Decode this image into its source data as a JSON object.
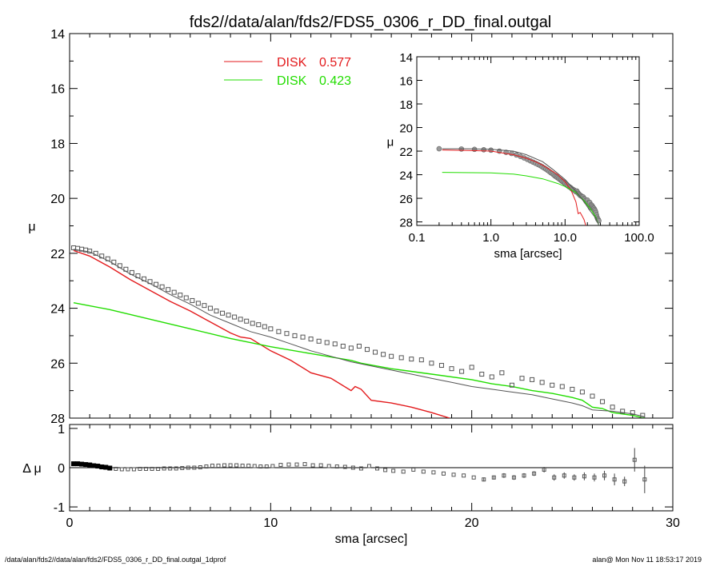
{
  "footer": {
    "left": "/data/alan/fds2//data/alan/fds2/FDS5_0306_r_DD_final.outgal_1dprof",
    "right": "alan@  Mon Nov 11 18:53:17 2019"
  },
  "colors": {
    "disk1": "#e31a1c",
    "disk2": "#22dd00",
    "data": "#555555",
    "model": "#555555"
  },
  "chart_data": [
    {
      "id": "main",
      "type": "line",
      "title": "fds2//data/alan/fds2/FDS5_0306_r_DD_final.outgal",
      "xlabel": "",
      "ylabel": "μ",
      "xlim": [
        0,
        30
      ],
      "ylim": [
        28,
        14
      ],
      "xticks": [
        0,
        10,
        20,
        30
      ],
      "xtick_labels": [
        "",
        "",
        "",
        ""
      ],
      "yticks": [
        14,
        16,
        18,
        20,
        22,
        24,
        26,
        28
      ],
      "ytick_labels": [
        "14",
        "16",
        "18",
        "20",
        "22",
        "24",
        "26",
        "28"
      ],
      "legend": [
        {
          "label": "DISK",
          "value": "0.577",
          "color": "#e31a1c"
        },
        {
          "label": "DISK",
          "value": "0.423",
          "color": "#22dd00"
        }
      ],
      "series": [
        {
          "name": "DISK 0.577",
          "color": "#e31a1c",
          "x": [
            0.2,
            1,
            2,
            3,
            4,
            5,
            6,
            7,
            8,
            8.5,
            9,
            10,
            11,
            12,
            13,
            14,
            14.2,
            14.5,
            15,
            16,
            17,
            18,
            18.9
          ],
          "y": [
            21.9,
            22.1,
            22.5,
            22.95,
            23.35,
            23.75,
            24.1,
            24.5,
            24.9,
            25.05,
            25.1,
            25.55,
            25.9,
            26.35,
            26.55,
            27.0,
            26.85,
            26.95,
            27.35,
            27.45,
            27.6,
            27.8,
            28.0
          ]
        },
        {
          "name": "DISK 0.423",
          "color": "#22dd00",
          "x": [
            0.2,
            2,
            4,
            6,
            8,
            10,
            12,
            14,
            14.5,
            16,
            18,
            20,
            21,
            22,
            23,
            24,
            25,
            25.5,
            26,
            26.5,
            27,
            28,
            28.6
          ],
          "y": [
            23.8,
            24.05,
            24.4,
            24.75,
            25.1,
            25.4,
            25.65,
            25.9,
            26.0,
            26.2,
            26.4,
            26.6,
            26.75,
            26.85,
            27.0,
            27.1,
            27.25,
            27.35,
            27.6,
            27.65,
            27.8,
            27.9,
            28.0
          ]
        },
        {
          "name": "",
          "color": "#555555",
          "x": [
            0.2,
            1,
            2,
            3,
            4,
            5,
            6,
            7,
            8,
            9,
            10,
            11,
            12,
            13,
            14,
            15,
            16,
            17,
            18,
            19,
            20,
            21,
            22,
            23,
            24,
            25,
            25.5,
            26,
            27,
            28,
            28.6
          ],
          "y": [
            21.85,
            21.95,
            22.3,
            22.75,
            23.1,
            23.5,
            23.85,
            24.25,
            24.55,
            24.85,
            25.05,
            25.3,
            25.55,
            25.75,
            25.95,
            26.1,
            26.25,
            26.4,
            26.55,
            26.7,
            26.85,
            26.95,
            27.05,
            27.15,
            27.3,
            27.45,
            27.55,
            27.7,
            27.75,
            27.85,
            27.95
          ]
        }
      ],
      "points": {
        "x": [
          0.2,
          0.4,
          0.6,
          0.8,
          1.0,
          1.3,
          1.6,
          1.9,
          2.2,
          2.5,
          2.8,
          3.1,
          3.4,
          3.7,
          4.0,
          4.3,
          4.6,
          4.9,
          5.2,
          5.5,
          5.8,
          6.1,
          6.4,
          6.7,
          7.0,
          7.3,
          7.6,
          7.9,
          8.2,
          8.5,
          8.8,
          9.1,
          9.4,
          9.7,
          10.0,
          10.4,
          10.8,
          11.2,
          11.6,
          12.0,
          12.4,
          12.8,
          13.2,
          13.6,
          14.0,
          14.4,
          14.8,
          15.2,
          15.6,
          16.0,
          16.5,
          17.0,
          17.5,
          18.0,
          18.5,
          19.0,
          19.5,
          20.0,
          20.5,
          21.0,
          21.5,
          22.0,
          22.5,
          23.0,
          23.5,
          24.0,
          24.5,
          25.0,
          25.5,
          26.0,
          26.5,
          27.0,
          27.5,
          28.0,
          28.5
        ],
        "y": [
          21.8,
          21.82,
          21.85,
          21.88,
          21.92,
          22.0,
          22.1,
          22.2,
          22.32,
          22.45,
          22.58,
          22.7,
          22.82,
          22.93,
          23.03,
          23.13,
          23.22,
          23.32,
          23.42,
          23.52,
          23.62,
          23.72,
          23.82,
          23.9,
          24.0,
          24.1,
          24.18,
          24.25,
          24.32,
          24.4,
          24.47,
          24.55,
          24.6,
          24.67,
          24.75,
          24.85,
          24.92,
          25.0,
          25.05,
          25.12,
          25.2,
          25.25,
          25.3,
          25.38,
          25.45,
          25.38,
          25.5,
          25.6,
          25.68,
          25.75,
          25.8,
          25.85,
          25.88,
          26.0,
          26.08,
          26.2,
          26.3,
          26.15,
          26.4,
          26.5,
          26.35,
          26.8,
          26.55,
          26.6,
          26.7,
          26.8,
          26.85,
          26.95,
          27.05,
          27.2,
          27.4,
          27.6,
          27.75,
          27.8,
          27.9
        ]
      }
    },
    {
      "id": "residual",
      "type": "scatter",
      "xlabel": "sma [arcsec]",
      "ylabel": "Δ μ",
      "xlim": [
        0,
        30
      ],
      "ylim": [
        -1.1,
        1.1
      ],
      "xticks": [
        0,
        10,
        20,
        30
      ],
      "xtick_labels": [
        "0",
        "10",
        "20",
        "30"
      ],
      "yticks": [
        -1,
        0,
        1
      ],
      "ytick_labels": [
        "-1",
        "0",
        "1"
      ],
      "x": [
        0.2,
        0.4,
        0.6,
        0.8,
        1.0,
        1.2,
        1.4,
        1.6,
        1.8,
        2.0,
        2.3,
        2.6,
        2.9,
        3.2,
        3.5,
        3.8,
        4.1,
        4.4,
        4.7,
        5.0,
        5.3,
        5.6,
        5.9,
        6.2,
        6.5,
        6.8,
        7.1,
        7.4,
        7.7,
        8.0,
        8.3,
        8.6,
        8.9,
        9.2,
        9.5,
        9.8,
        10.1,
        10.5,
        10.9,
        11.3,
        11.7,
        12.1,
        12.5,
        12.9,
        13.3,
        13.7,
        14.1,
        14.5,
        14.9,
        15.3,
        15.7,
        16.1,
        16.6,
        17.1,
        17.6,
        18.1,
        18.6,
        19.1,
        19.6,
        20.1,
        20.6,
        21.1,
        21.6,
        22.1,
        22.6,
        23.1,
        23.6,
        24.1,
        24.6,
        25.1,
        25.6,
        26.1,
        26.6,
        27.1,
        27.6,
        28.1,
        28.6
      ],
      "y": [
        0.1,
        0.1,
        0.09,
        0.08,
        0.07,
        0.05,
        0.04,
        0.02,
        0.01,
        -0.01,
        -0.03,
        -0.04,
        -0.04,
        -0.04,
        -0.03,
        -0.03,
        -0.03,
        -0.03,
        -0.02,
        -0.02,
        -0.02,
        -0.01,
        0.0,
        0.0,
        0.01,
        0.03,
        0.05,
        0.05,
        0.06,
        0.06,
        0.06,
        0.05,
        0.05,
        0.04,
        0.03,
        0.03,
        0.04,
        0.07,
        0.08,
        0.08,
        0.09,
        0.06,
        0.06,
        0.04,
        0.03,
        0.02,
        0.0,
        -0.02,
        0.04,
        -0.02,
        -0.06,
        -0.08,
        -0.1,
        -0.05,
        -0.1,
        -0.12,
        -0.15,
        -0.18,
        -0.2,
        -0.25,
        -0.3,
        -0.25,
        -0.2,
        -0.25,
        -0.2,
        -0.15,
        -0.05,
        -0.25,
        -0.2,
        -0.25,
        -0.22,
        -0.25,
        -0.2,
        -0.3,
        -0.35,
        0.2,
        -0.3
      ],
      "errors": [
        0.0,
        0.0,
        0.0,
        0.0,
        0.0,
        0.0,
        0.0,
        0.0,
        0.0,
        0.0,
        0.0,
        0.0,
        0.0,
        0.0,
        0.0,
        0.0,
        0.0,
        0.0,
        0.0,
        0.0,
        0.0,
        0.0,
        0.0,
        0.0,
        0.0,
        0.0,
        0.0,
        0.0,
        0.0,
        0.0,
        0.0,
        0.0,
        0.0,
        0.0,
        0.0,
        0.0,
        0.0,
        0.0,
        0.0,
        0.0,
        0.0,
        0.0,
        0.0,
        0.0,
        0.0,
        0.0,
        0.0,
        0.0,
        0.0,
        0.0,
        0.0,
        0.0,
        0.0,
        0.0,
        0.0,
        0.0,
        0.0,
        0.0,
        0.0,
        0.0,
        0.05,
        0.05,
        0.06,
        0.06,
        0.06,
        0.06,
        0.07,
        0.08,
        0.08,
        0.08,
        0.1,
        0.1,
        0.12,
        0.15,
        0.12,
        0.3,
        0.35
      ]
    },
    {
      "id": "inset",
      "type": "line",
      "xlabel": "sma [arcsec]",
      "ylabel": "μ",
      "xscale": "log",
      "xlim": [
        0.1,
        100
      ],
      "ylim": [
        28.3,
        14
      ],
      "xticks": [
        0.1,
        1,
        10,
        100
      ],
      "xtick_labels": [
        "0.1",
        "1.0",
        "10.0",
        "100.0"
      ],
      "yticks": [
        14,
        16,
        18,
        20,
        22,
        24,
        26,
        28
      ],
      "ytick_labels": [
        "14",
        "16",
        "18",
        "20",
        "22",
        "24",
        "26",
        "28"
      ],
      "series": [
        {
          "name": "",
          "color": "#e31a1c",
          "x": [
            0.22,
            0.5,
            1,
            2,
            3,
            4,
            5,
            6,
            8,
            10,
            12,
            14,
            15,
            16,
            17,
            18,
            19
          ],
          "y": [
            21.9,
            21.95,
            22.0,
            22.3,
            22.6,
            22.9,
            23.2,
            23.5,
            24.0,
            24.6,
            25.3,
            26.3,
            27.3,
            27.2,
            27.5,
            27.8,
            28.3
          ]
        },
        {
          "name": "",
          "color": "#22dd00",
          "x": [
            0.22,
            1,
            2,
            3,
            5,
            8,
            10,
            14,
            18,
            22,
            26,
            28.6
          ],
          "y": [
            23.8,
            23.85,
            23.95,
            24.1,
            24.35,
            24.75,
            25.0,
            25.5,
            26.2,
            26.9,
            27.6,
            28.3
          ]
        },
        {
          "name": "",
          "color": "#555555",
          "x": [
            0.22,
            0.5,
            1,
            2,
            3,
            5,
            7,
            10,
            14,
            18,
            22,
            26,
            28.6
          ],
          "y": [
            21.8,
            21.8,
            21.85,
            22.0,
            22.3,
            22.9,
            23.6,
            24.4,
            25.4,
            26.3,
            27.1,
            27.7,
            28.3
          ]
        }
      ]
    }
  ]
}
